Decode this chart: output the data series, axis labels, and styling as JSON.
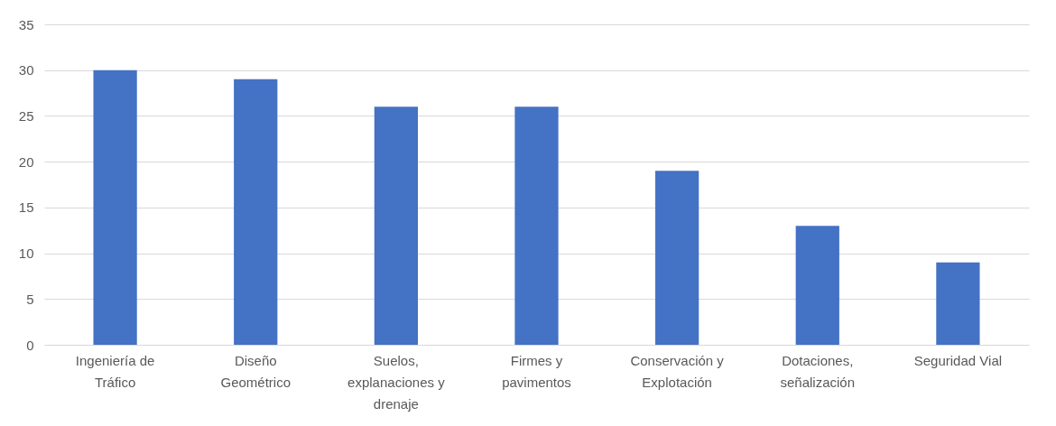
{
  "chart_data": {
    "type": "bar",
    "categories": [
      "Ingeniería de Tráfico",
      "Diseño Geométrico",
      "Suelos, explanaciones y drenaje",
      "Firmes y pavimentos",
      "Conservación y Explotación",
      "Dotaciones, señalización",
      "Seguridad Vial"
    ],
    "values": [
      30,
      29,
      26,
      26,
      19,
      13,
      9
    ],
    "color": "#4472c4",
    "ylim": [
      0,
      35
    ],
    "yticks": [
      0,
      5,
      10,
      15,
      20,
      25,
      30,
      35
    ],
    "grid": "y"
  }
}
